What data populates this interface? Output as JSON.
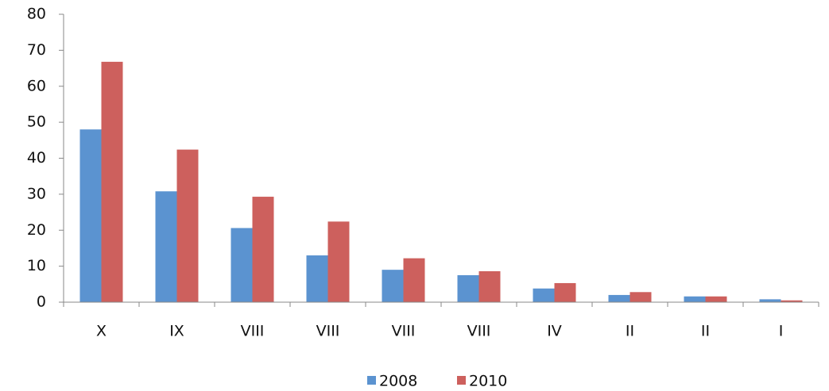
{
  "chart_data": {
    "type": "bar",
    "categories": [
      "X",
      "IX",
      "VIII",
      "VIII",
      "VIII",
      "VIII",
      "IV",
      "II",
      "II",
      "I"
    ],
    "series": [
      {
        "name": "2008",
        "color": "#5b93d0",
        "values": [
          48,
          30.8,
          20.6,
          13,
          9,
          7.5,
          3.8,
          2,
          1.6,
          0.8
        ]
      },
      {
        "name": "2010",
        "color": "#cd605d",
        "values": [
          66.8,
          42.4,
          29.3,
          22.4,
          12.2,
          8.6,
          5.3,
          2.8,
          1.6,
          0.5
        ]
      }
    ],
    "ylim": [
      0,
      80
    ],
    "yticks": [
      0,
      10,
      20,
      30,
      40,
      50,
      60,
      70,
      80
    ],
    "grid": false,
    "legend": "bottom"
  }
}
